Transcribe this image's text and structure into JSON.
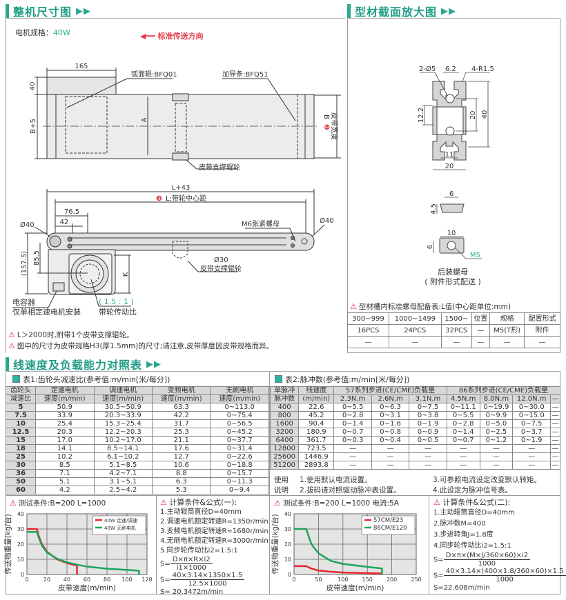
{
  "section1": {
    "title": "整机尺寸图",
    "motor_spec_label": "电机规格：",
    "motor_spec_value": "40W",
    "direction": "标准传送方向",
    "top_view": {
      "dim_165": "165",
      "dim_40": "40",
      "dim_b5": "B+5",
      "dim_a": "A",
      "roller_label": "弧面辊:BFQ01",
      "guide_label": "加导条:BFQ51",
      "support_roller": "皮带支撑辊轮",
      "b_marker": "❷",
      "b_label": "B",
      "belt_width": "皮带宽度"
    },
    "side_view": {
      "dim_l43": "L+43",
      "l_marker": "❸",
      "l_label": "L:带轮中心距",
      "dim_765": "76.5",
      "dim_42": "42",
      "dia_left": "Ø40",
      "dia_right": "Ø40",
      "dim_855": "85.5",
      "dim_1575": "(157.5)",
      "dim_k": "K",
      "nut_label": "M6张紧螺母",
      "dia_30": "Ø30",
      "support_roller": "皮带支撑辊轮",
      "capacitor": "电容器",
      "capacitor_note": "仅单相定速电机安装",
      "ratio": "( 1.5 : 1 )",
      "ratio_label": "带轮传动比"
    },
    "notes": [
      "L＞2000时,附带1个皮带支撑辊轮。",
      "图中的尺寸为皮带规格H3(厚1.5mm)的尺寸;请注意,皮带厚度因皮带规格而异。"
    ]
  },
  "section_profile": {
    "title": "型材截面放大图",
    "dims": {
      "holes": "2-Ø5",
      "slot": "6.2",
      "radius": "4-R1.5",
      "d122": "12.2",
      "d20v": "20",
      "d40": "40",
      "d11": "11",
      "d20h": "20"
    },
    "nut1": {
      "w": "6",
      "h": "4.5"
    },
    "nut2": {
      "w": "10",
      "h": "6",
      "thread": "M5"
    },
    "caption": "后装螺母",
    "caption2": "( 附件形式配送 )",
    "table_title": "型材槽内标准螺母配备表:L值(中心距单位:mm)",
    "table": {
      "headers": [
        "300~999",
        "1000~1499",
        "1500~",
        "位置",
        "规格",
        "配置形式"
      ],
      "rows": [
        [
          "16PCS",
          "24PCS",
          "32PCS",
          "—",
          "M5(T形)",
          "附件"
        ],
        [
          "—",
          "—",
          "—",
          "—",
          "—",
          "—"
        ]
      ]
    }
  },
  "section2": {
    "title": "线速度及负载能力对照表",
    "table1": {
      "title": "表1:齿轮头减速比(参考值:m/min[米/每分])",
      "header_top": [
        "齿轮头",
        "定速电机",
        "调速电机",
        "变频电机",
        "无刷电机"
      ],
      "header_bottom": [
        "减速比",
        "速度(m/min)",
        "速度(m/min)",
        "速度(m/min)",
        "速度(m/min)"
      ],
      "rows": [
        [
          "5",
          "50.9",
          "30.5~50.9",
          "63.3",
          "0~113.0"
        ],
        [
          "7.5",
          "33.9",
          "20.3~33.9",
          "42.2",
          "0~75.4"
        ],
        [
          "10",
          "25.4",
          "15.3~25.4",
          "31.7",
          "0~56.5"
        ],
        [
          "12.5",
          "20.3",
          "12.2~20.3",
          "25.3",
          "0~45.2"
        ],
        [
          "15",
          "17.0",
          "10.2~17.0",
          "21.1",
          "0~37.7"
        ],
        [
          "18",
          "14.1",
          "8.5~14.1",
          "17.6",
          "0~31.4"
        ],
        [
          "25",
          "10.2",
          "6.1~10.2",
          "12.7",
          "0~22.6"
        ],
        [
          "30",
          "8.5",
          "5.1~8.5",
          "10.6",
          "0~18.8"
        ],
        [
          "36",
          "7.1",
          "4.2~7.1",
          "8.8",
          "0~15.7"
        ],
        [
          "50",
          "5.1",
          "3.1~5.1",
          "6.3",
          "0~11.3"
        ],
        [
          "60",
          "4.2",
          "2.5~4.2",
          "5.3",
          "0~9.4"
        ]
      ]
    },
    "table2": {
      "title": "表2:脉冲数(参考值:m/min[米/每分])",
      "header_top": [
        "单脉冲",
        "线速度",
        "57系列步进(CE/CME)负载量",
        "86系列步进(CE/CME)负载量"
      ],
      "header_bottom": [
        "脉冲数",
        "(m/min)",
        "2.3N.m",
        "2.6N.m",
        "3.1N.m",
        "4.5N.m",
        "8.0N.m",
        "12.0N.m",
        "—"
      ],
      "rows": [
        [
          "400",
          "22.6",
          "0~5.5",
          "0~6.3",
          "0~7.5",
          "0~11.1",
          "0~19.9",
          "0~30.0",
          "—"
        ],
        [
          "800",
          "45.2",
          "0~2.8",
          "0~3.1",
          "0~3.8",
          "0~5.5",
          "0~9.9",
          "0~15.0",
          "—"
        ],
        [
          "1600",
          "90.4",
          "0~1.4",
          "0~1.6",
          "0~1.9",
          "0~2.8",
          "0~5.0",
          "0~7.5",
          "—"
        ],
        [
          "3200",
          "180.9",
          "0~0.7",
          "0~0.8",
          "0~0.9",
          "0~1.4",
          "0~2.5",
          "0~3.7",
          "—"
        ],
        [
          "6400",
          "361.7",
          "0~0.3",
          "0~0.4",
          "0~0.5",
          "0~0.7",
          "0~1.2",
          "0~1.9",
          "—"
        ],
        [
          "12800",
          "723.5",
          "—",
          "—",
          "—",
          "—",
          "—",
          "—",
          "—"
        ],
        [
          "25600",
          "1446.9",
          "—",
          "—",
          "—",
          "—",
          "—",
          "—",
          "—"
        ],
        [
          "51200",
          "2893.8",
          "—",
          "—",
          "—",
          "—",
          "—",
          "—",
          "—"
        ]
      ],
      "usage_label1": "使用",
      "usage_label2": "说明",
      "usage": [
        "1.使用默认电流设置。",
        "2.拔码请对照驱动脉冲表设置。",
        "3.可参照电流设定改变默认转矩。",
        "4.此设定为脉冲信号表。"
      ]
    },
    "formula1": {
      "title": "计算条件&公式(一):",
      "lines": [
        "1.主动辊筒直径D=40mm",
        "2.调速电机额定转速R=1350r/min",
        "3.变频电机额定转速R=1680r/min",
        "4.无刷电机额定转速R=3000r/min",
        "5.同步轮传动比i2=1.5:1"
      ],
      "s": "S=",
      "f1_num": "D×π×R×i2",
      "f1_den": "i1×1000",
      "f2_num": "40×3.14×1350×1.5",
      "f2_den": "12.5×1000",
      "result": "S= 20.3472m/min"
    },
    "formula2": {
      "title": "计算条件&公式(二):",
      "lines": [
        "1.主动辊筒直径D=40mm",
        "2.脉冲数M=400",
        "3.步进转角J=1.8度",
        "4.同步轮传动比i2=1.5:1"
      ],
      "s": "S=",
      "f1_num": "D×π×(M×J/360×60)×i2",
      "f1_den": "1000",
      "f2_num": "40×3.14×(400×1.8/360×60)×1.5",
      "f2_den": "1000",
      "result": "S=22.608m/min"
    }
  },
  "chart_data": [
    {
      "type": "line",
      "title": "测试条件:B=200   L=1000",
      "xlabel": "皮带速度(m/min)",
      "ylabel": "传送物重量(kg/台)",
      "xlim": [
        0,
        120
      ],
      "ylim": [
        0,
        40
      ],
      "xticks": [
        0,
        20,
        40,
        60,
        80,
        100,
        120
      ],
      "yticks": [
        0,
        10,
        20,
        30,
        40
      ],
      "grid": true,
      "legend": "top-right",
      "series": [
        {
          "name": "40W 定速/调速",
          "color": "#e8282e",
          "x": [
            0,
            10,
            12,
            15,
            20,
            30,
            40,
            50,
            50
          ],
          "y": [
            30,
            30,
            25,
            20,
            15,
            10,
            7.5,
            5.8,
            0
          ]
        },
        {
          "name": "40W 无刷电机",
          "color": "#1aa55a",
          "x": [
            0,
            10,
            12,
            15,
            20,
            30,
            40,
            50,
            60,
            80,
            100,
            112,
            112
          ],
          "y": [
            28,
            28,
            24,
            19,
            14.5,
            10.5,
            8,
            6.5,
            5.2,
            3.8,
            3,
            2.5,
            0
          ]
        }
      ]
    },
    {
      "type": "line",
      "title": "测试条件:B=200   L=1000  电流:5A",
      "xlabel": "皮带速度(m/min)",
      "ylabel": "传送物重量(kg/台)",
      "xlim": [
        0,
        250
      ],
      "ylim": [
        0,
        40
      ],
      "xticks": [
        0,
        50,
        100,
        150,
        200,
        250
      ],
      "yticks": [
        0,
        10,
        20,
        30,
        40
      ],
      "grid": true,
      "legend": "top-right",
      "series": [
        {
          "name": "57CM/E23",
          "color": "#e8282e",
          "x": [
            0,
            25,
            35,
            50,
            75,
            100,
            150,
            180
          ],
          "y": [
            5.5,
            5.5,
            4,
            2.6,
            1.8,
            1.3,
            0.9,
            0.7
          ]
        },
        {
          "name": "86CM/E120",
          "color": "#1aa55a",
          "x": [
            0,
            25,
            30,
            35,
            40,
            50,
            75,
            100,
            150,
            180,
            180
          ],
          "y": [
            30,
            30,
            25,
            20.5,
            18,
            14,
            9,
            7,
            5,
            4,
            0
          ]
        }
      ]
    }
  ],
  "colors": {
    "accent": "#2aa88f",
    "red": "#e23d4b",
    "grid_bg": "#e4e4e4"
  }
}
